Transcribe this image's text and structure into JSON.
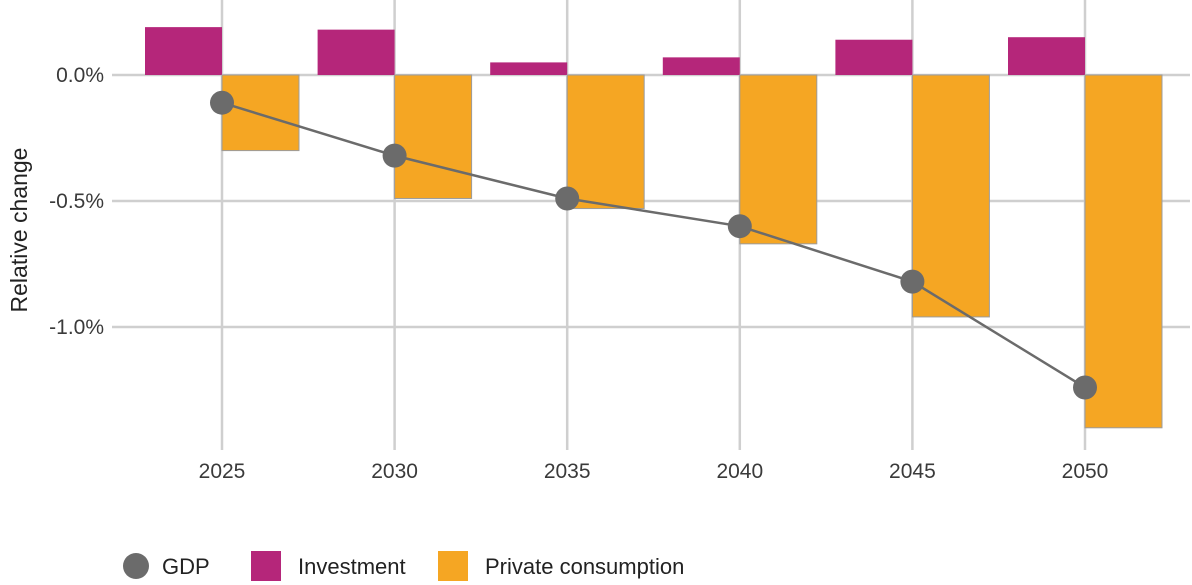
{
  "chart_data": {
    "type": "bar",
    "categories": [
      "2025",
      "2030",
      "2035",
      "2040",
      "2045",
      "2050"
    ],
    "ylabel": "Relative change",
    "xlabel": "",
    "ylim": [
      -1.5,
      0.25
    ],
    "yticks": [
      0.0,
      -0.5,
      -1.0
    ],
    "ytick_labels": [
      "0.0%",
      "-0.5%",
      "-1.0%"
    ],
    "grid": true,
    "legend_position": "bottom-left",
    "series": [
      {
        "name": "Investment",
        "kind": "bar",
        "color": "#b5267a",
        "values": [
          0.19,
          0.18,
          0.05,
          0.07,
          0.14,
          0.15
        ]
      },
      {
        "name": "Private consumption",
        "kind": "bar",
        "color": "#f5a623",
        "values": [
          -0.3,
          -0.49,
          -0.53,
          -0.67,
          -0.96,
          -1.4
        ]
      },
      {
        "name": "GDP",
        "kind": "line-point",
        "color": "#6b6b6b",
        "values": [
          -0.11,
          -0.32,
          -0.49,
          -0.6,
          -0.82,
          -1.24
        ]
      }
    ]
  },
  "legend": {
    "items": [
      {
        "label": "GDP",
        "marker": "circle",
        "color": "#6b6b6b"
      },
      {
        "label": "Investment",
        "marker": "square",
        "color": "#b5267a"
      },
      {
        "label": "Private consumption",
        "marker": "square",
        "color": "#f5a623"
      }
    ]
  }
}
